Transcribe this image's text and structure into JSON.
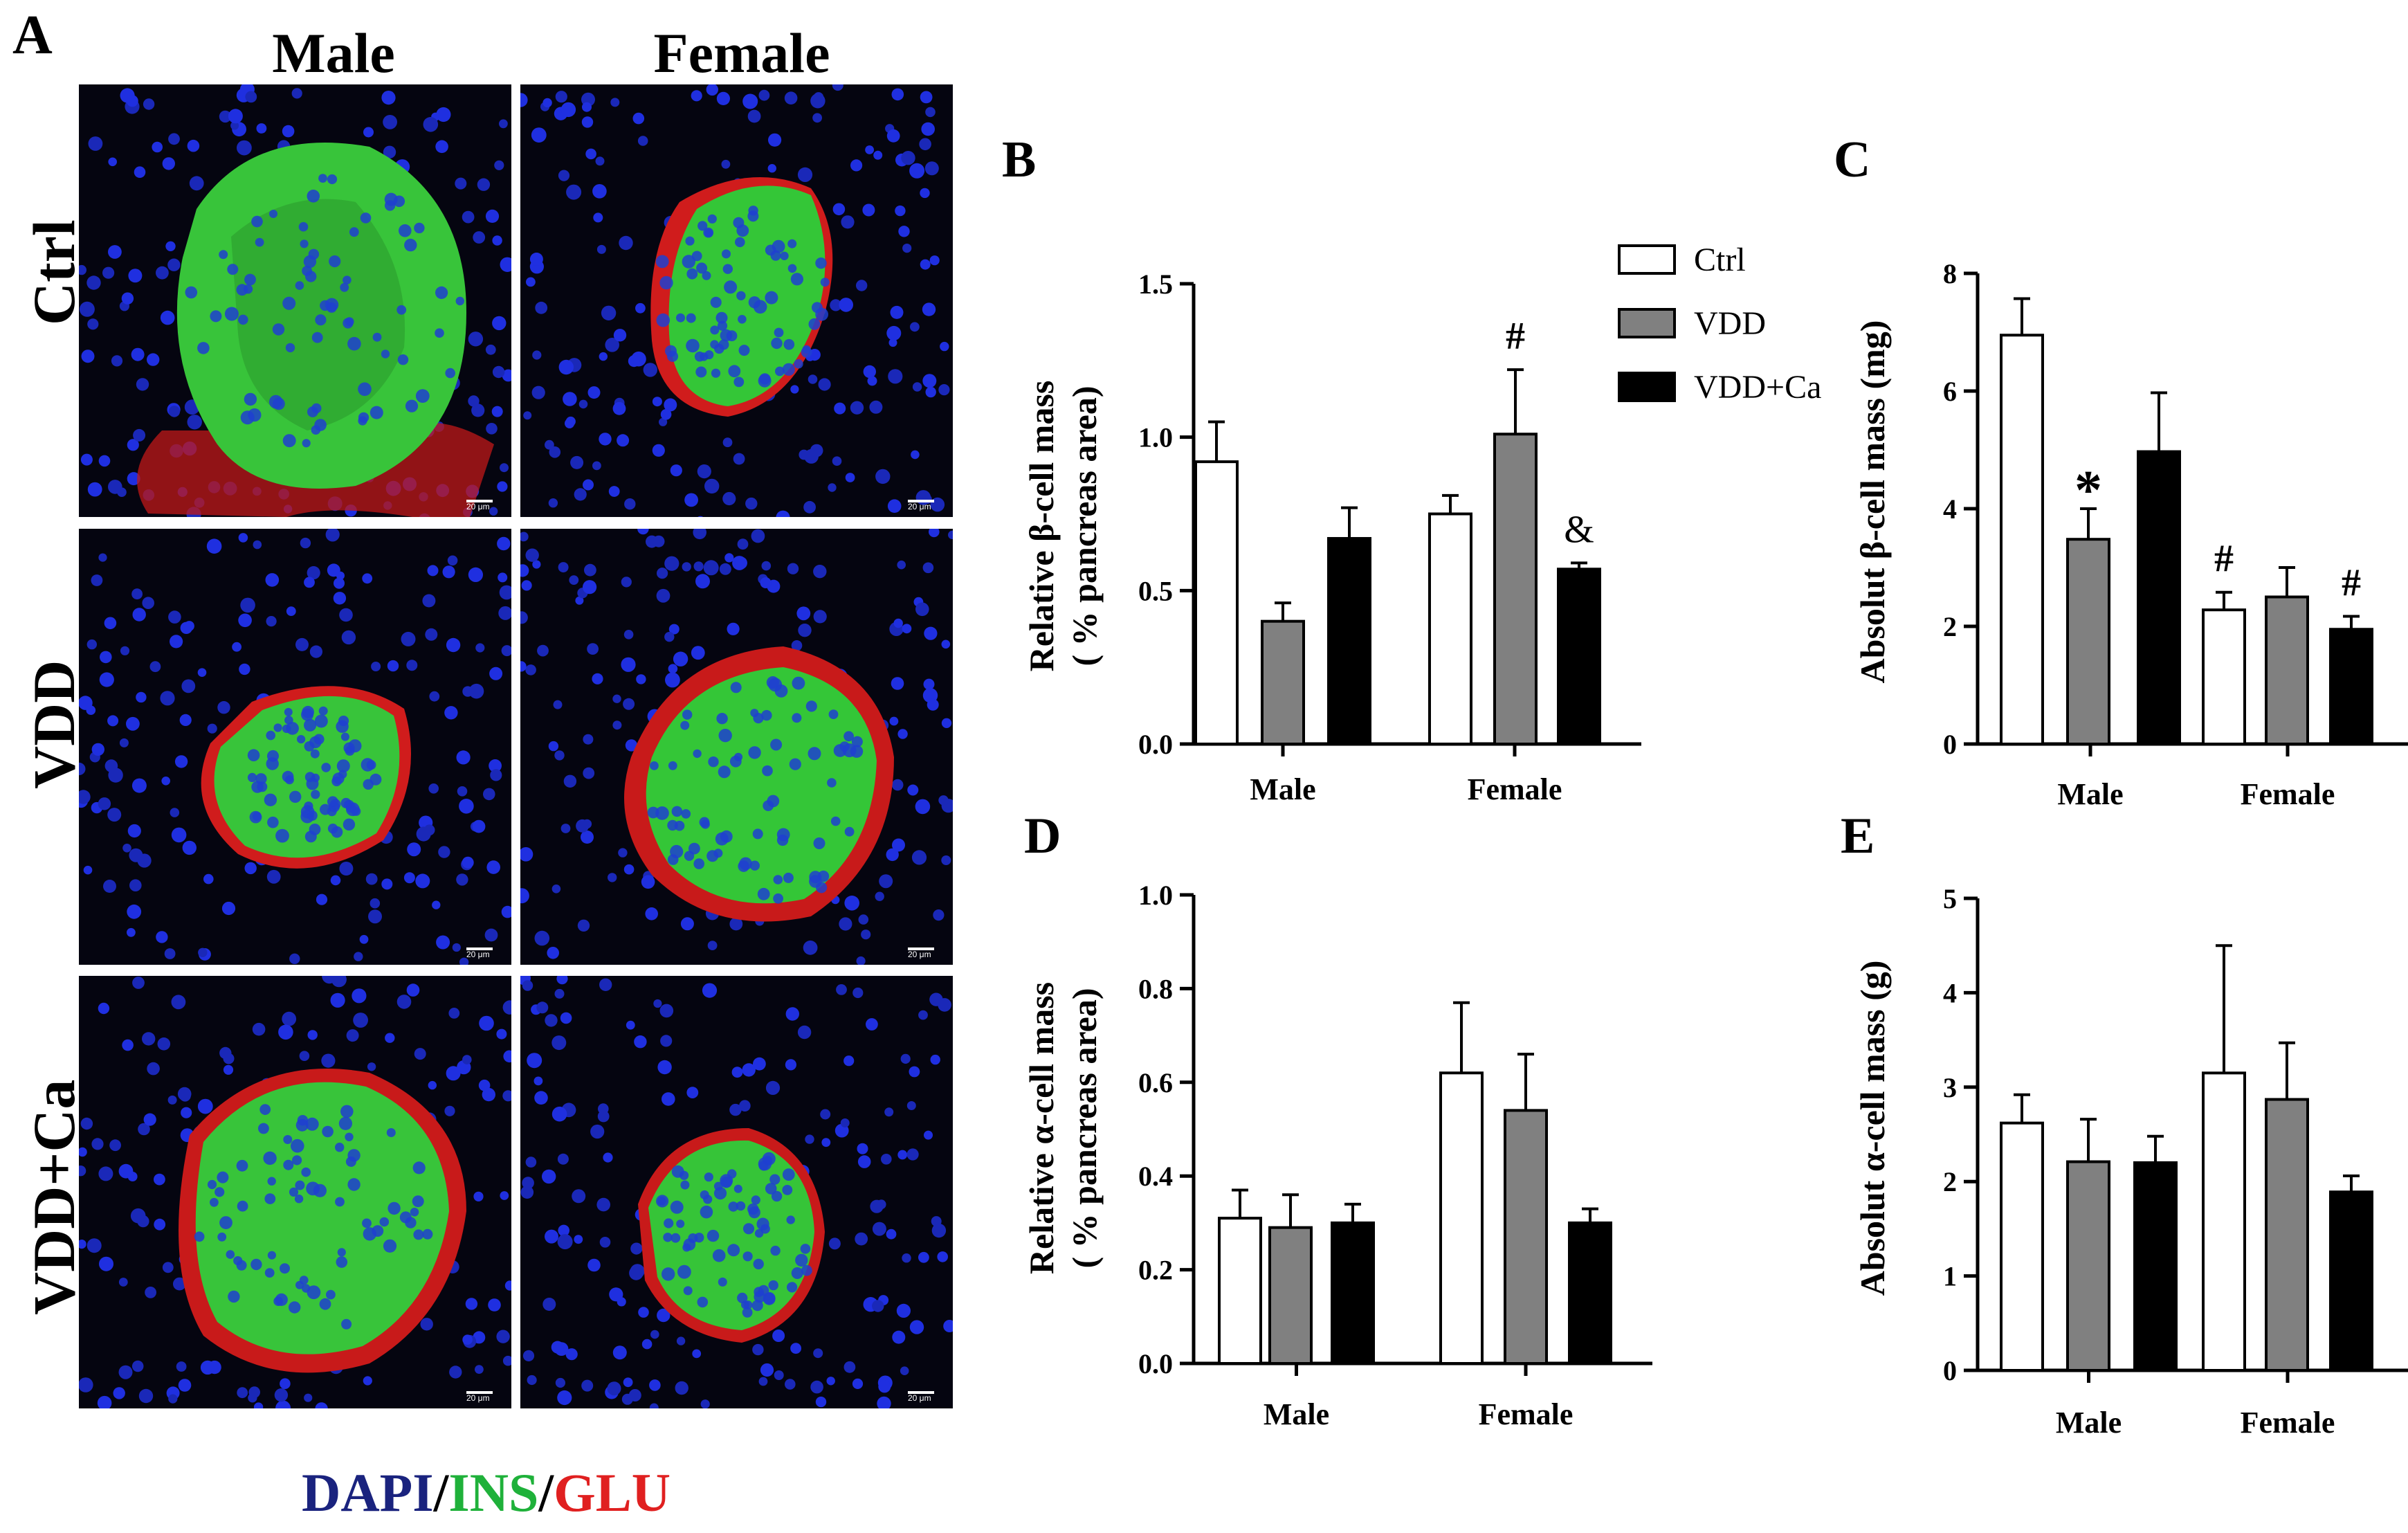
{
  "panel_a": {
    "letter": "A",
    "columns": [
      "Male",
      "Female"
    ],
    "rows": [
      "Ctrl",
      "VDD",
      "VDD+Ca"
    ],
    "scale_bar": "20 μm",
    "stain": {
      "dapi": "DAPI",
      "ins": "INS",
      "glu": "GLU",
      "sep": "/",
      "colors": {
        "dapi": "#1a237e",
        "ins": "#1fb13a",
        "glu": "#e02020"
      }
    }
  },
  "legend": {
    "items": [
      {
        "label": "Ctrl",
        "color": "#ffffff"
      },
      {
        "label": "VDD",
        "color": "#808080"
      },
      {
        "label": "VDD+Ca",
        "color": "#000000"
      }
    ]
  },
  "chart_data": [
    {
      "panel": "B",
      "type": "bar",
      "ylabel": [
        "Relative β-cell mass",
        "( % pancreas area)"
      ],
      "categories": [
        "Male",
        "Female"
      ],
      "ylim": [
        0,
        1.5
      ],
      "yticks": [
        "0.0",
        "0.5",
        "1.0",
        "1.5"
      ],
      "series": [
        {
          "name": "Ctrl",
          "values": [
            0.92,
            0.75
          ],
          "errors": [
            0.13,
            0.06
          ]
        },
        {
          "name": "VDD",
          "values": [
            0.4,
            1.01
          ],
          "errors": [
            0.06,
            0.21
          ]
        },
        {
          "name": "VDD+Ca",
          "values": [
            0.67,
            0.57
          ],
          "errors": [
            0.1,
            0.02
          ]
        }
      ],
      "annotations": [
        {
          "text": "#",
          "category": 1,
          "series": 1
        },
        {
          "text": "&",
          "category": 1,
          "series": 2
        }
      ]
    },
    {
      "panel": "C",
      "type": "bar",
      "ylabel": [
        "Absolut  β-cell mass (mg)"
      ],
      "categories": [
        "Male",
        "Female"
      ],
      "ylim": [
        0,
        8
      ],
      "yticks": [
        "0",
        "2",
        "4",
        "6",
        "8"
      ],
      "series": [
        {
          "name": "Ctrl",
          "values": [
            6.95,
            2.28
          ],
          "errors": [
            0.62,
            0.3
          ]
        },
        {
          "name": "VDD",
          "values": [
            3.48,
            2.5
          ],
          "errors": [
            0.52,
            0.5
          ]
        },
        {
          "name": "VDD+Ca",
          "values": [
            4.97,
            1.95
          ],
          "errors": [
            1.0,
            0.22
          ]
        }
      ],
      "annotations": [
        {
          "text": "*",
          "category": 0,
          "series": 1
        },
        {
          "text": "#",
          "category": 1,
          "series": 0
        },
        {
          "text": "#",
          "category": 1,
          "series": 2
        }
      ]
    },
    {
      "panel": "D",
      "type": "bar",
      "ylabel": [
        "Relative α-cell mass",
        "( % pancreas area)"
      ],
      "categories": [
        "Male",
        "Female"
      ],
      "ylim": [
        0,
        1.0
      ],
      "yticks": [
        "0.0",
        "0.2",
        "0.4",
        "0.6",
        "0.8",
        "1.0"
      ],
      "series": [
        {
          "name": "Ctrl",
          "values": [
            0.31,
            0.62
          ],
          "errors": [
            0.06,
            0.15
          ]
        },
        {
          "name": "VDD",
          "values": [
            0.29,
            0.54
          ],
          "errors": [
            0.07,
            0.12
          ]
        },
        {
          "name": "VDD+Ca",
          "values": [
            0.3,
            0.3
          ],
          "errors": [
            0.04,
            0.03
          ]
        }
      ],
      "annotations": []
    },
    {
      "panel": "E",
      "type": "bar",
      "ylabel": [
        "Absolut α-cell mass (g)"
      ],
      "categories": [
        "Male",
        "Female"
      ],
      "ylim": [
        0,
        5
      ],
      "yticks": [
        "0",
        "1",
        "2",
        "3",
        "4",
        "5"
      ],
      "series": [
        {
          "name": "Ctrl",
          "values": [
            2.62,
            3.15
          ],
          "errors": [
            0.3,
            1.35
          ]
        },
        {
          "name": "VDD",
          "values": [
            2.21,
            2.87
          ],
          "errors": [
            0.45,
            0.6
          ]
        },
        {
          "name": "VDD+Ca",
          "values": [
            2.2,
            1.89
          ],
          "errors": [
            0.28,
            0.17
          ]
        }
      ],
      "annotations": []
    }
  ]
}
